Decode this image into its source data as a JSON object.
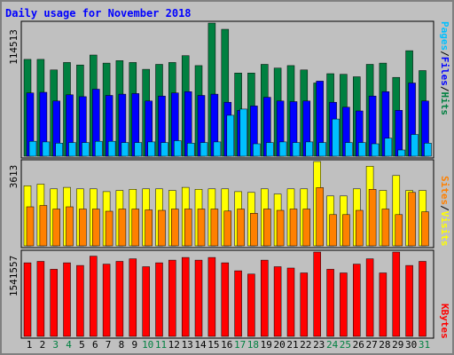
{
  "chart_data": [
    {
      "type": "bar",
      "panel": "pages-files-hits",
      "title": "Daily usage for November 2018",
      "categories": [
        "1",
        "2",
        "3",
        "4",
        "5",
        "6",
        "7",
        "8",
        "9",
        "10",
        "11",
        "12",
        "13",
        "14",
        "15",
        "16",
        "17",
        "18",
        "19",
        "20",
        "21",
        "22",
        "23",
        "24",
        "25",
        "26",
        "27",
        "28",
        "29",
        "30",
        "31"
      ],
      "weekend_days": [
        "3",
        "4",
        "10",
        "11",
        "17",
        "18",
        "24",
        "25",
        "31"
      ],
      "y_axis_label": "114513",
      "ylim": [
        0,
        114513
      ],
      "series": [
        {
          "name": "Hits",
          "color": "#008040",
          "values": [
            83265,
            83265,
            74193,
            80601,
            78465,
            87005,
            80068,
            82199,
            80601,
            74721,
            79001,
            80601,
            86472,
            77933,
            114513,
            109176,
            71527,
            71527,
            79001,
            75789,
            77933,
            74193,
            62985,
            70997,
            70465,
            68332,
            79001,
            80068,
            67792,
            90740,
            73661
          ]
        },
        {
          "name": "Files",
          "color": "#0000ff",
          "values": [
            54444,
            54979,
            47504,
            52843,
            51247,
            57647,
            52311,
            53377,
            53909,
            47504,
            51776,
            54444,
            55511,
            52311,
            53377,
            46440,
            39499,
            43238,
            50708,
            47504,
            46977,
            47504,
            64584,
            46440,
            42167,
            38968,
            51776,
            55511,
            39499,
            62986,
            47504
          ]
        },
        {
          "name": "Pages",
          "color": "#00c0ff",
          "values": [
            12808,
            12273,
            11205,
            11740,
            11740,
            12808,
            12808,
            11740,
            11740,
            12273,
            11740,
            13340,
            11205,
            11740,
            12273,
            35218,
            40554,
            10673,
            11740,
            12273,
            11740,
            12273,
            11740,
            32016,
            11740,
            11740,
            10673,
            15477,
            5335,
            18677,
            11205
          ]
        }
      ]
    },
    {
      "type": "bar",
      "panel": "sites-visits",
      "categories": [
        "1",
        "2",
        "3",
        "4",
        "5",
        "6",
        "7",
        "8",
        "9",
        "10",
        "11",
        "12",
        "13",
        "14",
        "15",
        "16",
        "17",
        "18",
        "19",
        "20",
        "21",
        "22",
        "23",
        "24",
        "25",
        "26",
        "27",
        "28",
        "29",
        "30",
        "31"
      ],
      "y_axis_label": "3613",
      "ylim": [
        0,
        3613
      ],
      "series": [
        {
          "name": "Visits",
          "color": "#ffff00",
          "values": [
            2574,
            2642,
            2440,
            2507,
            2440,
            2440,
            2322,
            2373,
            2424,
            2440,
            2440,
            2373,
            2507,
            2424,
            2440,
            2440,
            2322,
            2289,
            2440,
            2222,
            2440,
            2440,
            3613,
            2138,
            2138,
            2440,
            3412,
            2373,
            3011,
            2373,
            2373
          ]
        },
        {
          "name": "Sites",
          "color": "#ff8000",
          "values": [
            1673,
            1729,
            1578,
            1673,
            1578,
            1578,
            1482,
            1578,
            1578,
            1540,
            1521,
            1578,
            1578,
            1578,
            1578,
            1492,
            1578,
            1394,
            1578,
            1521,
            1578,
            1578,
            2495,
            1338,
            1338,
            1521,
            2424,
            1578,
            1338,
            2289,
            1460
          ]
        }
      ]
    },
    {
      "type": "bar",
      "panel": "kbytes",
      "categories": [
        "1",
        "2",
        "3",
        "4",
        "5",
        "6",
        "7",
        "8",
        "9",
        "10",
        "11",
        "12",
        "13",
        "14",
        "15",
        "16",
        "17",
        "18",
        "19",
        "20",
        "21",
        "22",
        "23",
        "24",
        "25",
        "26",
        "27",
        "28",
        "29",
        "30",
        "31"
      ],
      "y_axis_label": "1541557",
      "ylim": [
        0,
        1541557
      ],
      "series": [
        {
          "name": "KBytes",
          "color": "#ff0000",
          "values": [
            1345332,
            1370456,
            1226316,
            1345332,
            1296188,
            1466890,
            1321254,
            1370456,
            1418673,
            1274031,
            1345332,
            1394582,
            1442762,
            1394582,
            1442762,
            1345332,
            1198766,
            1139286,
            1394582,
            1274031,
            1249174,
            1160066,
            1541557,
            1226316,
            1160066,
            1321254,
            1418673,
            1160066,
            1541557,
            1296188,
            1370456
          ]
        }
      ]
    }
  ],
  "labels": {
    "right_top": [
      {
        "text": "Pages",
        "color": "#00c0ff"
      },
      {
        "text": "/",
        "color": "#000000"
      },
      {
        "text": "Files",
        "color": "#0000ff"
      },
      {
        "text": "/",
        "color": "#000000"
      },
      {
        "text": "Hits",
        "color": "#008040"
      }
    ],
    "right_middle": [
      {
        "text": "Sites",
        "color": "#ff8000"
      },
      {
        "text": "/",
        "color": "#000000"
      },
      {
        "text": "Visits",
        "color": "#ffff00"
      }
    ],
    "right_bottom": [
      {
        "text": "KBytes",
        "color": "#ff0000"
      }
    ]
  },
  "colors": {
    "background": "#c0c0c0",
    "title": "#0000ff",
    "weekday_label": "#000000",
    "weekend_label": "#008040"
  }
}
